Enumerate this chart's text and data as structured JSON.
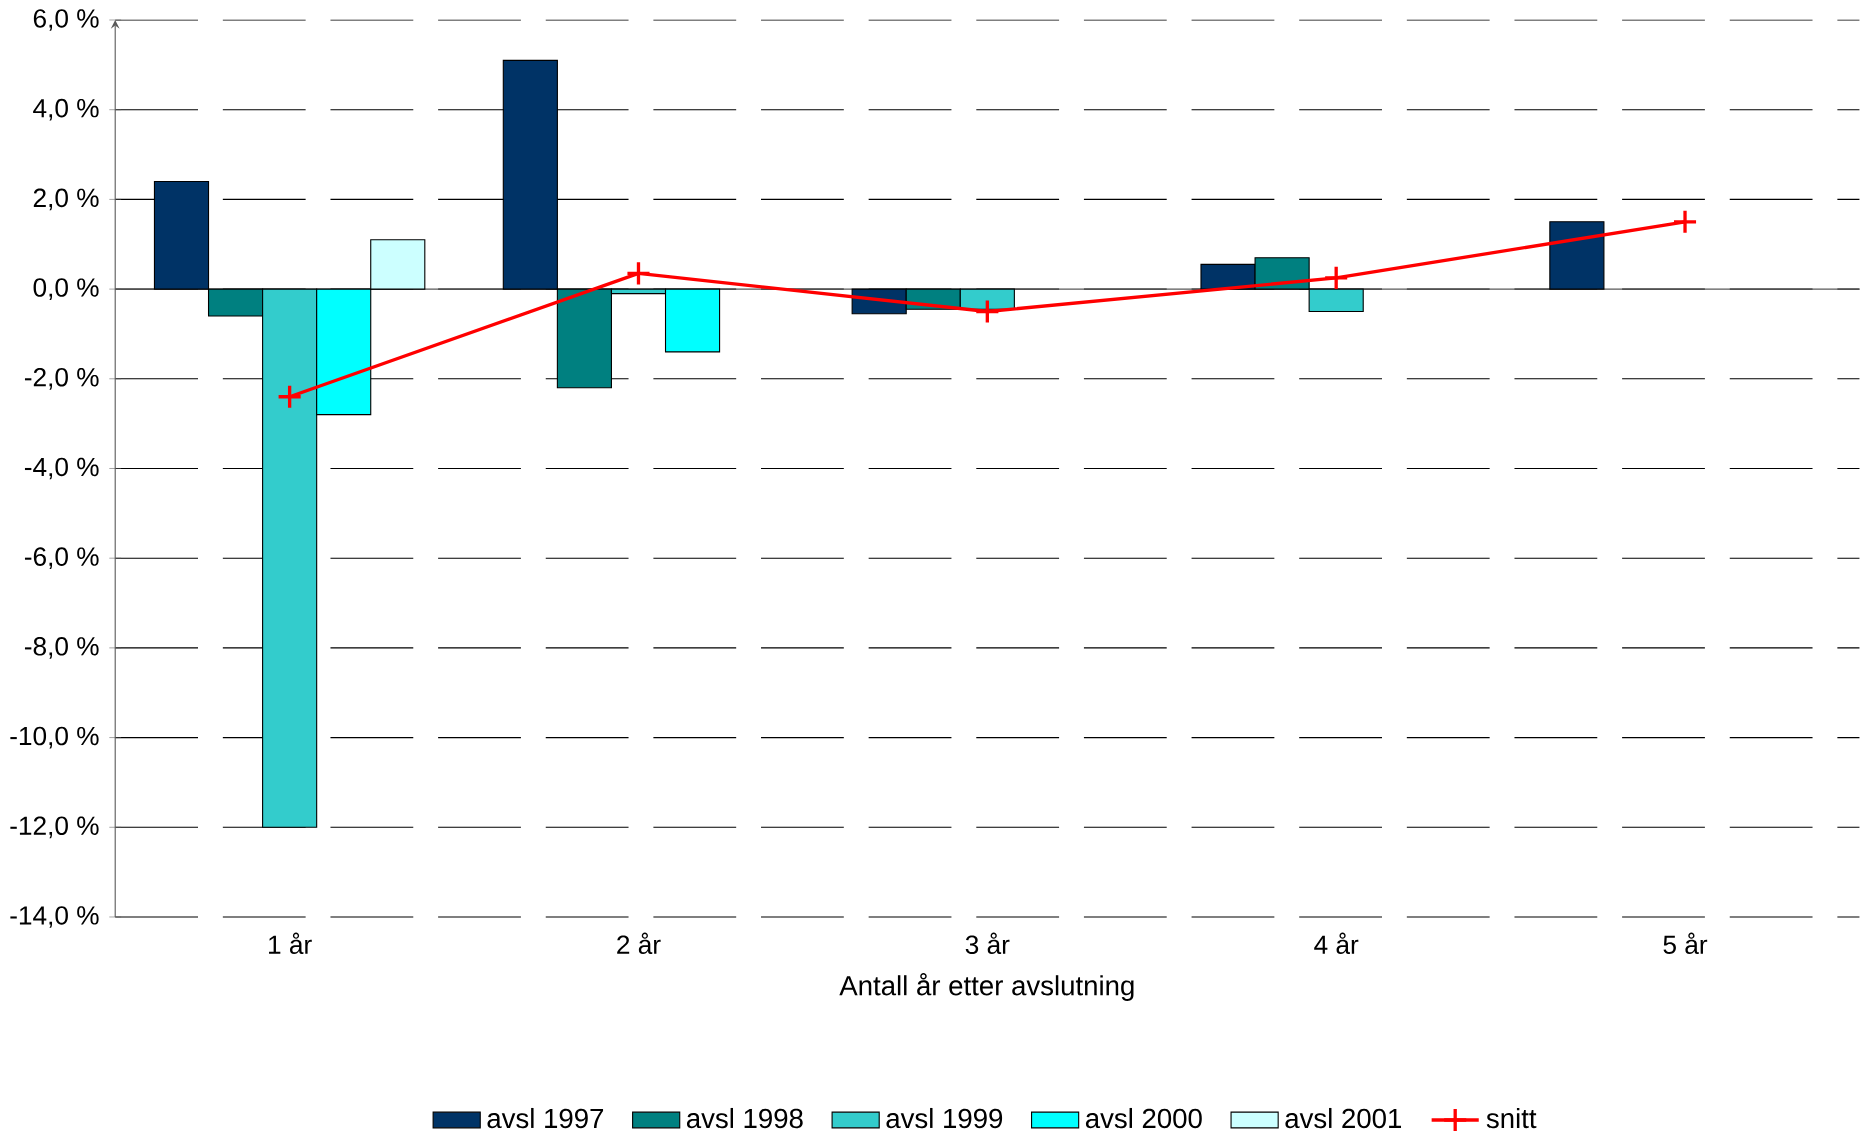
{
  "chart_data": {
    "type": "bar",
    "xlabel": "Antall år etter avslutning",
    "categories": [
      "1 år",
      "2 år",
      "3 år",
      "4 år",
      "5 år"
    ],
    "series": [
      {
        "name": "avsl 1997",
        "color": "#003366",
        "values": [
          2.4,
          5.1,
          -0.55,
          0.55,
          1.5
        ]
      },
      {
        "name": "avsl 1998",
        "color": "#008080",
        "values": [
          -0.6,
          -2.2,
          -0.45,
          0.7,
          null
        ]
      },
      {
        "name": "avsl 1999",
        "color": "#33cccc",
        "values": [
          -12.0,
          -0.1,
          -0.45,
          -0.5,
          null
        ]
      },
      {
        "name": "avsl 2000",
        "color": "#00ffff",
        "values": [
          -2.8,
          -1.4,
          null,
          null,
          null
        ]
      },
      {
        "name": "avsl 2001",
        "color": "#ccffff",
        "values": [
          1.1,
          null,
          null,
          null,
          null
        ]
      },
      {
        "name": "snitt",
        "type": "line",
        "color": "#ff0000",
        "values": [
          -2.4,
          0.35,
          -0.5,
          0.25,
          1.5
        ]
      }
    ],
    "marker": "cross",
    "ylim": [
      -14,
      6
    ],
    "yticks": [
      {
        "value": -14,
        "label": "-14,0 %"
      },
      {
        "value": -12,
        "label": "-12,0 %"
      },
      {
        "value": -10,
        "label": "-10,0 %"
      },
      {
        "value": -8,
        "label": "-8,0 %"
      },
      {
        "value": -6,
        "label": "-6,0 %"
      },
      {
        "value": -4,
        "label": "-4,0 %"
      },
      {
        "value": -2,
        "label": "-2,0 %"
      },
      {
        "value": 0,
        "label": "0,0 %"
      },
      {
        "value": 2,
        "label": "2,0 %"
      },
      {
        "value": 4,
        "label": "4,0 %"
      },
      {
        "value": 6,
        "label": "6,0 %"
      }
    ],
    "grid": "y",
    "legend": "bottom"
  }
}
